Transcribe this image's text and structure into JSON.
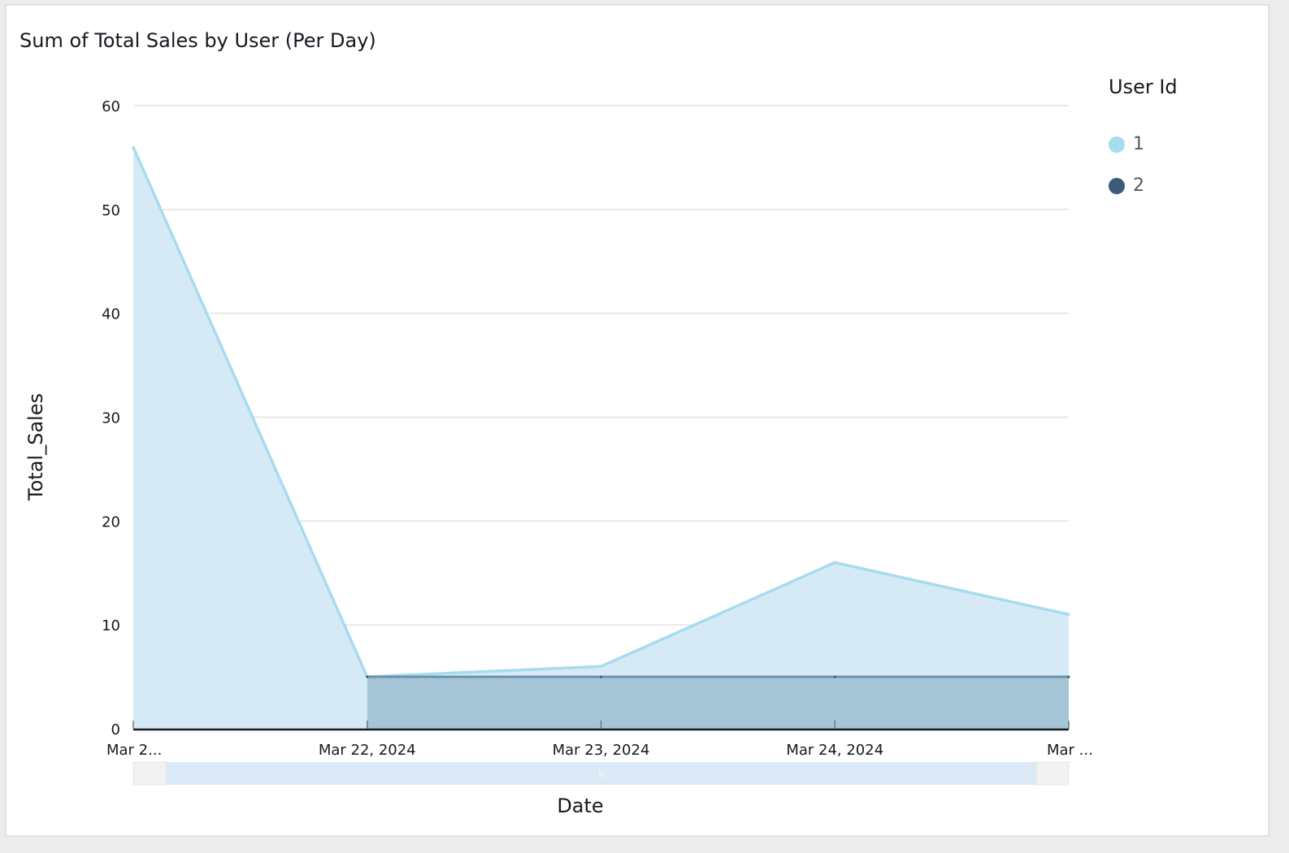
{
  "chart_data": {
    "type": "area",
    "title": "Sum of Total Sales by User (Per Day)",
    "xlabel": "Date",
    "ylabel": "Total_Sales",
    "ylim": [
      0,
      60
    ],
    "yticks": [
      "0",
      "10",
      "20",
      "30",
      "40",
      "50",
      "60"
    ],
    "xticks": [
      "Mar 2...",
      "Mar 22, 2024",
      "Mar 23, 2024",
      "Mar 24, 2024",
      "Mar ..."
    ],
    "grid": true,
    "stacked": false,
    "legend": {
      "title": "User Id",
      "placement": "right"
    },
    "series": [
      {
        "name": "1",
        "color": "#a6dcee",
        "fill": "#d6eaf5",
        "values": [
          56,
          5,
          6,
          16,
          11
        ]
      },
      {
        "name": "2",
        "color": "#3b5b78",
        "fill": "#a5c5d6",
        "values": [
          null,
          5,
          5,
          5,
          5
        ]
      }
    ]
  }
}
